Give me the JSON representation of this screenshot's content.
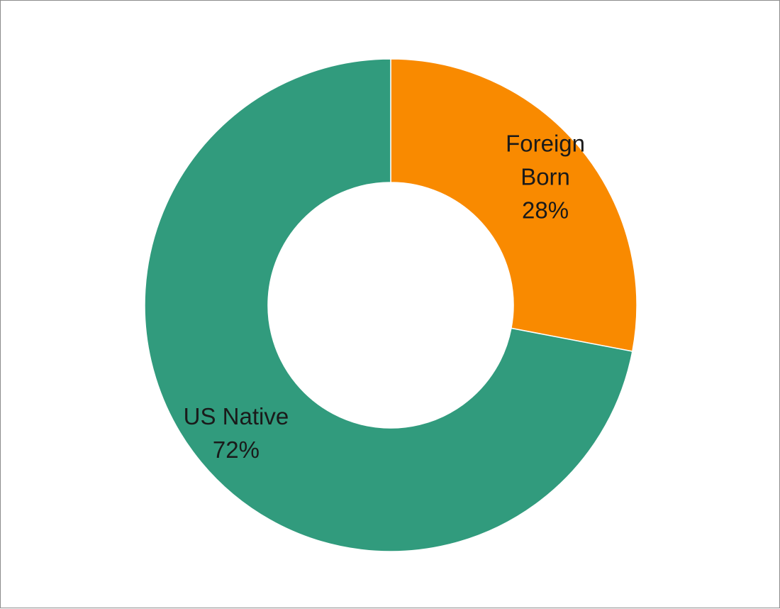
{
  "chart_data": {
    "type": "pie",
    "variant": "donut",
    "title": "",
    "categories": [
      "Foreign Born",
      "US Native"
    ],
    "values": [
      28,
      72
    ],
    "unit": "%",
    "slices": [
      {
        "label_lines": [
          "Foreign",
          "Born"
        ],
        "value": 28,
        "value_text": "28%",
        "color": "#f98a00"
      },
      {
        "label_lines": [
          "US Native"
        ],
        "value": 72,
        "value_text": "72%",
        "color": "#319b7d"
      }
    ],
    "legend": "none",
    "data_labels": "inside-slices",
    "start_angle": "12 o'clock",
    "direction": "clockwise"
  }
}
